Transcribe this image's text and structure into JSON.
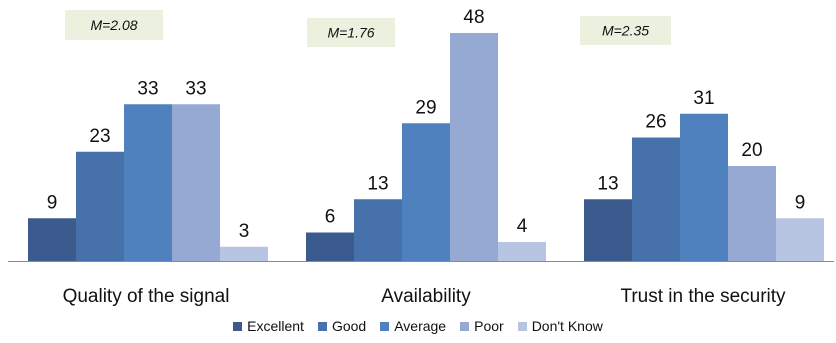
{
  "chart_data": {
    "type": "bar",
    "groups": [
      {
        "label": "Quality of the signal",
        "mean": "M=2.08",
        "values": [
          9,
          23,
          33,
          33,
          3
        ]
      },
      {
        "label": "Availability",
        "mean": "M=1.76",
        "values": [
          6,
          13,
          29,
          48,
          4
        ]
      },
      {
        "label": "Trust in the security",
        "mean": "M=2.35",
        "values": [
          13,
          26,
          31,
          20,
          9
        ]
      }
    ],
    "series": [
      {
        "name": "Excellent",
        "color": "#3B5B8E"
      },
      {
        "name": "Good",
        "color": "#4771AB"
      },
      {
        "name": "Average",
        "color": "#4E81BD"
      },
      {
        "name": "Poor",
        "color": "#95A9D3"
      },
      {
        "name": "Don't Know",
        "color": "#B7C5E3"
      }
    ],
    "ylim": [
      0,
      48
    ],
    "legend_position": "bottom",
    "grid": false,
    "mean_box_color": "#EBF1DE"
  }
}
